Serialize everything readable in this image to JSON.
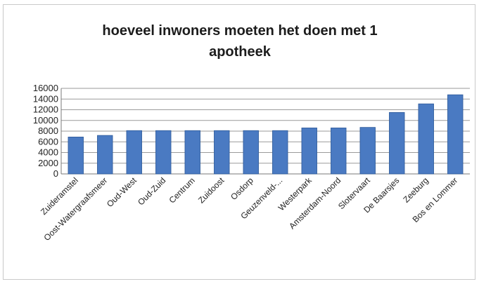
{
  "chart_data": {
    "type": "bar",
    "title_lines": [
      "hoeveel inwoners moeten het doen met 1",
      "apotheek"
    ],
    "categories": [
      "Zuideramstel",
      "Oost-Watergraafsmeer",
      "Oud-West",
      "Oud-Zuid",
      "Centrum",
      "Zuidoost",
      "Osdorp",
      "Geuzenveld-...",
      "Westerpark",
      "Amsterdam-Noord",
      "Slotervaart",
      "De Baarsjes",
      "Zeeburg",
      "Bos en Lommer"
    ],
    "values": [
      6900,
      7200,
      8100,
      8100,
      8100,
      8100,
      8100,
      8100,
      8600,
      8600,
      8700,
      11500,
      13100,
      14800
    ],
    "ylim": [
      0,
      16000
    ],
    "yticks": [
      "0",
      "2000",
      "4000",
      "6000",
      "8000",
      "10000",
      "12000",
      "14000",
      "16000"
    ],
    "grid": true,
    "bar_color": "#4a7ac2"
  }
}
